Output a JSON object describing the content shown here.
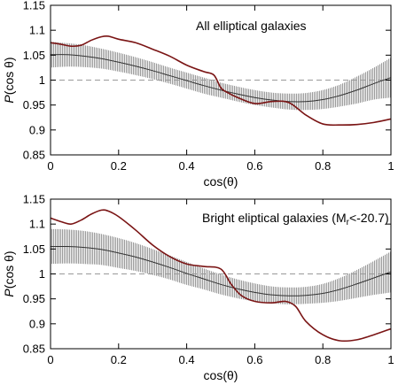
{
  "chart_data": [
    {
      "type": "line",
      "annotation": "All elliptical galaxies",
      "annotation_sub": "",
      "annotation_suffix": "",
      "xlabel": "cos(θ)",
      "ylabel_italic": "P",
      "ylabel_rest": "(cos θ)",
      "xlim": [
        0,
        1
      ],
      "ylim": [
        0.85,
        1.15
      ],
      "x_ticks": [
        "0",
        "0.2",
        "0.4",
        "0.6",
        "0.8",
        "1"
      ],
      "y_ticks": [
        "0.85",
        "0.9",
        "0.95",
        "1",
        "1.05",
        "1.1",
        "1.15"
      ],
      "reference_line": 1.0,
      "grid": false,
      "colors": {
        "band": "#aaaaaa",
        "mean": "#333333",
        "observed": "#7a1414",
        "reference": "#999999"
      },
      "series": [
        {
          "role": "mean",
          "x": [
            0,
            0.05,
            0.1,
            0.15,
            0.2,
            0.25,
            0.3,
            0.35,
            0.4,
            0.45,
            0.5,
            0.55,
            0.6,
            0.65,
            0.7,
            0.75,
            0.8,
            0.85,
            0.9,
            0.95,
            1.0
          ],
          "y": [
            1.051,
            1.051,
            1.048,
            1.043,
            1.036,
            1.028,
            1.019,
            1.009,
            0.999,
            0.989,
            0.98,
            0.972,
            0.965,
            0.96,
            0.957,
            0.957,
            0.961,
            0.969,
            0.98,
            0.993,
            1.005
          ]
        },
        {
          "role": "band_upper",
          "x": [
            0,
            0.05,
            0.1,
            0.15,
            0.2,
            0.25,
            0.3,
            0.35,
            0.4,
            0.45,
            0.5,
            0.55,
            0.6,
            0.65,
            0.7,
            0.75,
            0.8,
            0.85,
            0.9,
            0.95,
            1.0
          ],
          "y": [
            1.077,
            1.074,
            1.07,
            1.063,
            1.055,
            1.046,
            1.036,
            1.025,
            1.015,
            1.005,
            0.995,
            0.987,
            0.98,
            0.975,
            0.973,
            0.974,
            0.98,
            0.991,
            1.007,
            1.025,
            1.045
          ]
        },
        {
          "role": "band_lower",
          "x": [
            0,
            0.05,
            0.1,
            0.15,
            0.2,
            0.25,
            0.3,
            0.35,
            0.4,
            0.45,
            0.5,
            0.55,
            0.6,
            0.65,
            0.7,
            0.75,
            0.8,
            0.85,
            0.9,
            0.95,
            1.0
          ],
          "y": [
            1.025,
            1.027,
            1.026,
            1.023,
            1.017,
            1.01,
            1.002,
            0.993,
            0.983,
            0.973,
            0.965,
            0.957,
            0.95,
            0.945,
            0.941,
            0.94,
            0.942,
            0.947,
            0.953,
            0.961,
            0.965
          ]
        },
        {
          "role": "observed",
          "x": [
            0,
            0.03,
            0.06,
            0.09,
            0.12,
            0.15,
            0.17,
            0.2,
            0.25,
            0.3,
            0.35,
            0.4,
            0.45,
            0.48,
            0.5,
            0.52,
            0.55,
            0.6,
            0.65,
            0.7,
            0.75,
            0.8,
            0.85,
            0.9,
            0.95,
            1.0
          ],
          "y": [
            1.075,
            1.072,
            1.068,
            1.07,
            1.08,
            1.087,
            1.088,
            1.082,
            1.075,
            1.062,
            1.048,
            1.03,
            1.017,
            1.01,
            0.985,
            0.975,
            0.965,
            0.953,
            0.957,
            0.955,
            0.93,
            0.912,
            0.91,
            0.911,
            0.915,
            0.922
          ]
        }
      ]
    },
    {
      "type": "line",
      "annotation": "Bright eliptical galaxies (M",
      "annotation_sub": "r",
      "annotation_suffix": "<-20.7)",
      "xlabel": "cos(θ)",
      "ylabel_italic": "P",
      "ylabel_rest": "(cos θ)",
      "xlim": [
        0,
        1
      ],
      "ylim": [
        0.85,
        1.15
      ],
      "x_ticks": [
        "0",
        "0.2",
        "0.4",
        "0.6",
        "0.8",
        "1"
      ],
      "y_ticks": [
        "0.85",
        "0.9",
        "0.95",
        "1",
        "1.05",
        "1.1",
        "1.15"
      ],
      "reference_line": 1.0,
      "grid": false,
      "colors": {
        "band": "#aaaaaa",
        "mean": "#333333",
        "observed": "#7a1414",
        "reference": "#999999"
      },
      "series": [
        {
          "role": "mean",
          "x": [
            0,
            0.05,
            0.1,
            0.15,
            0.2,
            0.25,
            0.3,
            0.35,
            0.4,
            0.45,
            0.5,
            0.55,
            0.6,
            0.65,
            0.7,
            0.75,
            0.8,
            0.85,
            0.9,
            0.95,
            1.0
          ],
          "y": [
            1.055,
            1.055,
            1.053,
            1.049,
            1.042,
            1.034,
            1.024,
            1.013,
            1.001,
            0.99,
            0.979,
            0.97,
            0.963,
            0.958,
            0.956,
            0.957,
            0.961,
            0.969,
            0.98,
            0.992,
            1.004
          ]
        },
        {
          "role": "band_upper",
          "x": [
            0,
            0.05,
            0.1,
            0.15,
            0.2,
            0.25,
            0.3,
            0.35,
            0.4,
            0.45,
            0.5,
            0.55,
            0.6,
            0.65,
            0.7,
            0.75,
            0.8,
            0.85,
            0.9,
            0.95,
            1.0
          ],
          "y": [
            1.09,
            1.089,
            1.086,
            1.08,
            1.072,
            1.062,
            1.05,
            1.037,
            1.024,
            1.011,
            0.999,
            0.989,
            0.981,
            0.975,
            0.973,
            0.974,
            0.98,
            0.992,
            1.008,
            1.026,
            1.045
          ]
        },
        {
          "role": "band_lower",
          "x": [
            0,
            0.05,
            0.1,
            0.15,
            0.2,
            0.25,
            0.3,
            0.35,
            0.4,
            0.45,
            0.5,
            0.55,
            0.6,
            0.65,
            0.7,
            0.75,
            0.8,
            0.85,
            0.9,
            0.95,
            1.0
          ],
          "y": [
            1.02,
            1.021,
            1.02,
            1.018,
            1.012,
            1.006,
            0.998,
            0.989,
            0.978,
            0.969,
            0.959,
            0.951,
            0.945,
            0.941,
            0.939,
            0.94,
            0.942,
            0.946,
            0.952,
            0.958,
            0.963
          ]
        },
        {
          "role": "observed",
          "x": [
            0,
            0.03,
            0.06,
            0.09,
            0.12,
            0.15,
            0.17,
            0.2,
            0.25,
            0.3,
            0.35,
            0.4,
            0.45,
            0.5,
            0.53,
            0.56,
            0.6,
            0.65,
            0.69,
            0.72,
            0.75,
            0.8,
            0.85,
            0.9,
            0.95,
            1.0
          ],
          "y": [
            1.112,
            1.105,
            1.1,
            1.108,
            1.12,
            1.128,
            1.126,
            1.115,
            1.088,
            1.058,
            1.035,
            1.02,
            1.015,
            1.01,
            0.98,
            0.957,
            0.945,
            0.942,
            0.945,
            0.935,
            0.905,
            0.878,
            0.866,
            0.868,
            0.878,
            0.89
          ]
        }
      ]
    }
  ]
}
